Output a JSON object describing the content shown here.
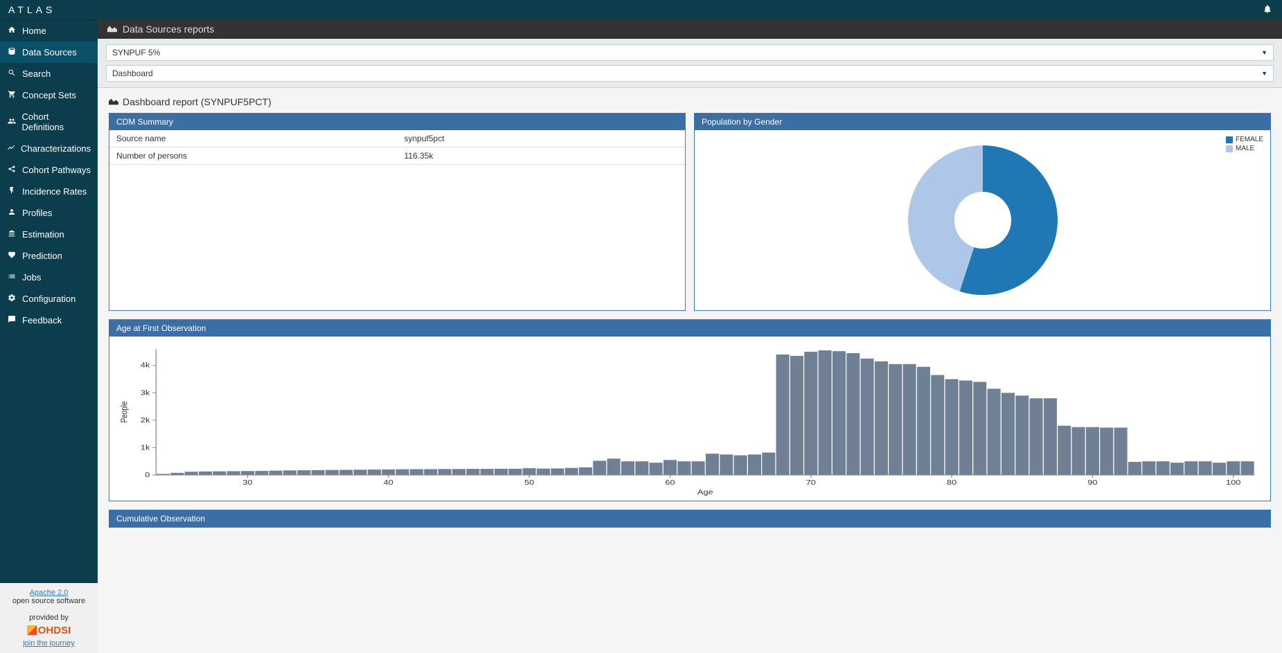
{
  "app": {
    "name": "ATLAS"
  },
  "sidebar": {
    "items": [
      {
        "icon": "home",
        "label": "Home",
        "active": false
      },
      {
        "icon": "database",
        "label": "Data Sources",
        "active": true
      },
      {
        "icon": "search",
        "label": "Search",
        "active": false
      },
      {
        "icon": "cart",
        "label": "Concept Sets",
        "active": false
      },
      {
        "icon": "users",
        "label": "Cohort Definitions",
        "active": false
      },
      {
        "icon": "linechart",
        "label": "Characterizations",
        "active": false
      },
      {
        "icon": "share",
        "label": "Cohort Pathways",
        "active": false
      },
      {
        "icon": "bolt",
        "label": "Incidence Rates",
        "active": false
      },
      {
        "icon": "user",
        "label": "Profiles",
        "active": false
      },
      {
        "icon": "balance",
        "label": "Estimation",
        "active": false
      },
      {
        "icon": "heart",
        "label": "Prediction",
        "active": false
      },
      {
        "icon": "list",
        "label": "Jobs",
        "active": false
      },
      {
        "icon": "cogs",
        "label": "Configuration",
        "active": false
      },
      {
        "icon": "comment",
        "label": "Feedback",
        "active": false
      }
    ]
  },
  "footer": {
    "license": "Apache 2.0",
    "oss": "open source software",
    "provided": "provided by",
    "org": "OHDSI",
    "tagline": "join the journey"
  },
  "breadcrumb": {
    "title": "Data Sources reports"
  },
  "selectors": {
    "source": "SYNPUF 5%",
    "report": "Dashboard"
  },
  "report": {
    "title": "Dashboard report (SYNPUF5PCT)"
  },
  "cdm_summary": {
    "title": "CDM Summary",
    "rows": [
      {
        "label": "Source name",
        "value": "synpuf5pct"
      },
      {
        "label": "Number of persons",
        "value": "116.35k"
      }
    ]
  },
  "gender_chart": {
    "title": "Population by Gender",
    "type": "donut",
    "inner_radius_ratio": 0.38,
    "slices": [
      {
        "label": "FEMALE",
        "value": 0.55,
        "color": "#1f77b4"
      },
      {
        "label": "MALE",
        "value": 0.45,
        "color": "#aec7e8"
      }
    ]
  },
  "age_chart": {
    "title": "Age at First Observation",
    "type": "histogram",
    "xlabel": "Age",
    "ylabel": "People",
    "bar_color": "#6f7f94",
    "grid_color": "#e5e5e5",
    "axis_color": "#888",
    "label_fontsize": 10,
    "x_ticks": [
      30,
      40,
      50,
      60,
      70,
      80,
      90,
      100
    ],
    "y_ticks": [
      {
        "v": 0,
        "label": "0"
      },
      {
        "v": 1000,
        "label": "1k"
      },
      {
        "v": 2000,
        "label": "2k"
      },
      {
        "v": 3000,
        "label": "3k"
      },
      {
        "v": 4000,
        "label": "4k"
      }
    ],
    "x_start": 24,
    "ylim": [
      0,
      4600
    ],
    "values": [
      40,
      80,
      120,
      130,
      135,
      140,
      145,
      150,
      160,
      170,
      175,
      180,
      185,
      190,
      195,
      200,
      205,
      210,
      215,
      215,
      220,
      220,
      225,
      225,
      230,
      230,
      250,
      235,
      240,
      260,
      280,
      520,
      600,
      500,
      500,
      450,
      550,
      500,
      500,
      780,
      750,
      720,
      750,
      820,
      4400,
      4350,
      4500,
      4550,
      4520,
      4450,
      4250,
      4150,
      4050,
      4050,
      3950,
      3650,
      3500,
      3450,
      3400,
      3150,
      3000,
      2900,
      2800,
      2800,
      1800,
      1750,
      1750,
      1730,
      1730,
      480,
      500,
      500,
      450,
      500,
      500,
      450,
      500,
      500
    ]
  },
  "cumulative": {
    "title": "Cumulative Observation"
  },
  "colors": {
    "sidebar_bg": "#0b3d4c",
    "sidebar_active": "#0a5068",
    "panel_header": "#3a6ea5"
  }
}
